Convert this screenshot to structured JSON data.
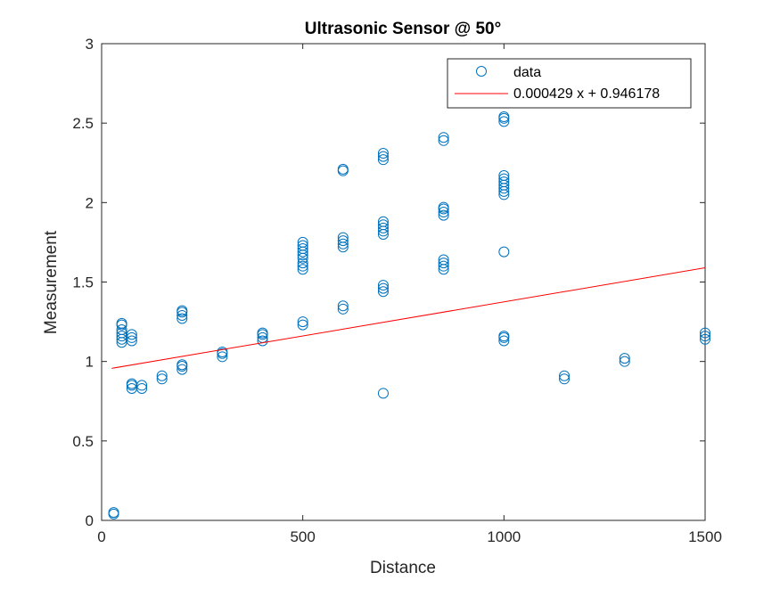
{
  "chart_data": {
    "type": "scatter",
    "title": "Ultrasonic Sensor @ 50°",
    "xlabel": "Distance",
    "ylabel": "Measurement",
    "xlim": [
      0,
      1500
    ],
    "ylim": [
      0,
      3
    ],
    "x_ticks": [
      0,
      500,
      1000,
      1500
    ],
    "x_tick_labels": [
      "0",
      "500",
      "1000",
      "1500"
    ],
    "y_ticks": [
      0,
      0.5,
      1,
      1.5,
      2,
      2.5,
      3
    ],
    "y_tick_labels": [
      "0",
      "0.5",
      "1",
      "1.5",
      "2",
      "2.5",
      "3"
    ],
    "grid": false,
    "legend_position": "top-right",
    "colors": {
      "data": "#0072BD",
      "fit": "#FF0000",
      "axes": "#262626"
    },
    "series": [
      {
        "name": "data",
        "marker": "circle",
        "points": [
          [
            30,
            0.04
          ],
          [
            30,
            0.05
          ],
          [
            50,
            1.12
          ],
          [
            50,
            1.14
          ],
          [
            50,
            1.16
          ],
          [
            50,
            1.18
          ],
          [
            50,
            1.2
          ],
          [
            50,
            1.23
          ],
          [
            50,
            1.24
          ],
          [
            75,
            1.13
          ],
          [
            75,
            1.15
          ],
          [
            75,
            1.17
          ],
          [
            75,
            0.83
          ],
          [
            75,
            0.85
          ],
          [
            75,
            0.86
          ],
          [
            100,
            0.83
          ],
          [
            100,
            0.85
          ],
          [
            150,
            0.89
          ],
          [
            150,
            0.91
          ],
          [
            200,
            0.95
          ],
          [
            200,
            0.97
          ],
          [
            200,
            0.98
          ],
          [
            200,
            1.27
          ],
          [
            200,
            1.29
          ],
          [
            200,
            1.31
          ],
          [
            200,
            1.32
          ],
          [
            300,
            1.03
          ],
          [
            300,
            1.05
          ],
          [
            300,
            1.06
          ],
          [
            400,
            1.13
          ],
          [
            400,
            1.15
          ],
          [
            400,
            1.17
          ],
          [
            400,
            1.18
          ],
          [
            500,
            1.23
          ],
          [
            500,
            1.25
          ],
          [
            500,
            1.58
          ],
          [
            500,
            1.6
          ],
          [
            500,
            1.62
          ],
          [
            500,
            1.65
          ],
          [
            500,
            1.67
          ],
          [
            500,
            1.69
          ],
          [
            500,
            1.71
          ],
          [
            500,
            1.73
          ],
          [
            500,
            1.75
          ],
          [
            600,
            1.33
          ],
          [
            600,
            1.35
          ],
          [
            600,
            1.72
          ],
          [
            600,
            1.74
          ],
          [
            600,
            1.76
          ],
          [
            600,
            1.78
          ],
          [
            600,
            2.2
          ],
          [
            600,
            2.21
          ],
          [
            700,
            0.8
          ],
          [
            700,
            1.44
          ],
          [
            700,
            1.46
          ],
          [
            700,
            1.48
          ],
          [
            700,
            1.8
          ],
          [
            700,
            1.82
          ],
          [
            700,
            1.84
          ],
          [
            700,
            1.86
          ],
          [
            700,
            1.88
          ],
          [
            700,
            2.27
          ],
          [
            700,
            2.29
          ],
          [
            700,
            2.31
          ],
          [
            850,
            1.58
          ],
          [
            850,
            1.6
          ],
          [
            850,
            1.62
          ],
          [
            850,
            1.64
          ],
          [
            850,
            1.92
          ],
          [
            850,
            1.94
          ],
          [
            850,
            1.96
          ],
          [
            850,
            1.97
          ],
          [
            850,
            2.39
          ],
          [
            850,
            2.41
          ],
          [
            1000,
            1.13
          ],
          [
            1000,
            1.15
          ],
          [
            1000,
            1.16
          ],
          [
            1000,
            1.69
          ],
          [
            1000,
            2.05
          ],
          [
            1000,
            2.07
          ],
          [
            1000,
            2.09
          ],
          [
            1000,
            2.11
          ],
          [
            1000,
            2.13
          ],
          [
            1000,
            2.15
          ],
          [
            1000,
            2.17
          ],
          [
            1000,
            2.51
          ],
          [
            1000,
            2.53
          ],
          [
            1000,
            2.54
          ],
          [
            1150,
            0.89
          ],
          [
            1150,
            0.91
          ],
          [
            1300,
            1.0
          ],
          [
            1300,
            1.02
          ],
          [
            1500,
            1.14
          ],
          [
            1500,
            1.16
          ],
          [
            1500,
            1.18
          ]
        ]
      },
      {
        "name": "0.000429 x + 0.946178",
        "type": "line",
        "slope": 0.000429,
        "intercept": 0.946178,
        "x_range": [
          25,
          1500
        ]
      }
    ]
  }
}
